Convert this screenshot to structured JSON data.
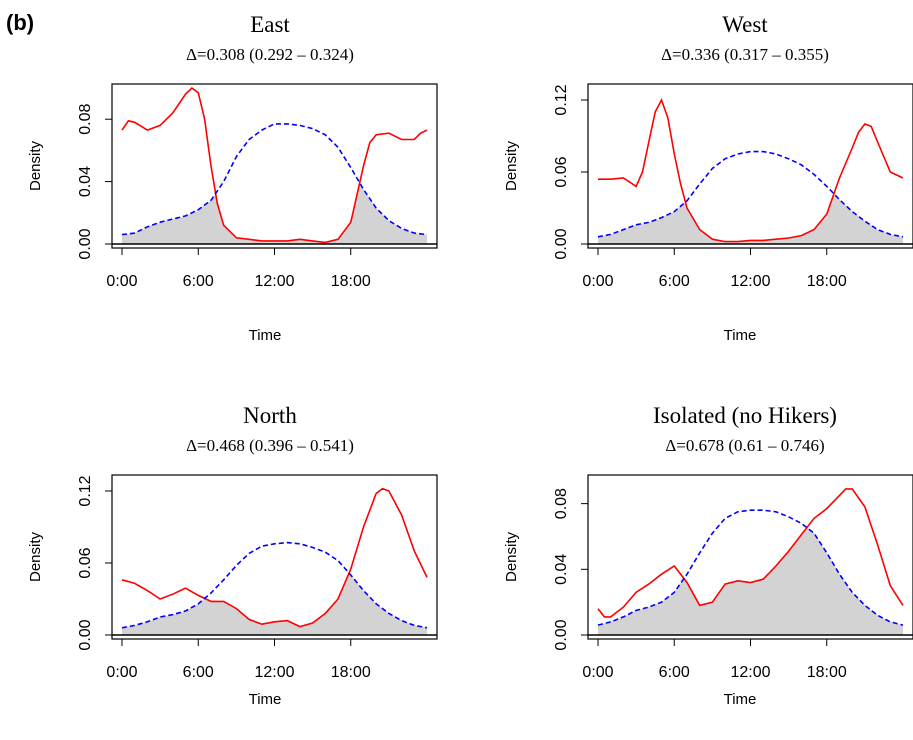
{
  "figure_label": "(b)",
  "chart_data": [
    {
      "type": "line",
      "title": "East",
      "subtitle": "Δ=0.308 (0.292 – 0.324)",
      "xlabel": "Time",
      "ylabel": "Density",
      "xlim": [
        0,
        24
      ],
      "ylim": [
        0,
        0.1
      ],
      "xticks": [
        "0:00",
        "6:00",
        "12:00",
        "18:00"
      ],
      "yticks": [
        "0.00",
        "0.04",
        "0.08"
      ],
      "series": [
        {
          "color": "#ff0000",
          "dash": "solid",
          "x": [
            0,
            0.5,
            1,
            2,
            3,
            4,
            5,
            5.5,
            6,
            6.5,
            7,
            7.5,
            8,
            9,
            10,
            11,
            12,
            13,
            14,
            15,
            16,
            17,
            18,
            19,
            19.5,
            20,
            21,
            22,
            23,
            23.5,
            24
          ],
          "y": [
            0.073,
            0.079,
            0.078,
            0.073,
            0.076,
            0.084,
            0.096,
            0.1,
            0.097,
            0.08,
            0.05,
            0.026,
            0.012,
            0.004,
            0.003,
            0.002,
            0.002,
            0.002,
            0.003,
            0.002,
            0.001,
            0.003,
            0.014,
            0.05,
            0.065,
            0.07,
            0.071,
            0.067,
            0.067,
            0.071,
            0.073
          ]
        },
        {
          "color": "#0000ff",
          "dash": "dashed",
          "x": [
            0,
            1,
            2,
            3,
            4,
            5,
            6,
            7,
            8,
            9,
            10,
            11,
            12,
            13,
            14,
            15,
            16,
            17,
            18,
            19,
            20,
            21,
            22,
            23,
            24
          ],
          "y": [
            0.006,
            0.007,
            0.011,
            0.014,
            0.016,
            0.018,
            0.022,
            0.028,
            0.04,
            0.056,
            0.067,
            0.073,
            0.077,
            0.077,
            0.076,
            0.074,
            0.07,
            0.062,
            0.049,
            0.035,
            0.023,
            0.015,
            0.01,
            0.007,
            0.006
          ]
        }
      ]
    },
    {
      "type": "line",
      "title": "West",
      "subtitle": "Δ=0.336 (0.317 – 0.355)",
      "xlabel": "Time",
      "ylabel": "Density",
      "xlim": [
        0,
        24
      ],
      "ylim": [
        0,
        0.13
      ],
      "xticks": [
        "0:00",
        "6:00",
        "12:00",
        "18:00"
      ],
      "yticks": [
        "0.00",
        "0.06",
        "0.12"
      ],
      "series": [
        {
          "color": "#ff0000",
          "dash": "solid",
          "x": [
            0,
            1,
            2,
            3,
            3.5,
            4,
            4.5,
            5,
            5.5,
            6,
            6.5,
            7,
            8,
            9,
            10,
            11,
            12,
            13,
            14,
            15,
            16,
            17,
            18,
            19,
            20,
            20.5,
            21,
            21.5,
            22,
            23,
            24
          ],
          "y": [
            0.054,
            0.054,
            0.055,
            0.048,
            0.06,
            0.085,
            0.11,
            0.12,
            0.105,
            0.075,
            0.05,
            0.03,
            0.012,
            0.004,
            0.002,
            0.002,
            0.003,
            0.003,
            0.004,
            0.005,
            0.007,
            0.012,
            0.025,
            0.055,
            0.08,
            0.093,
            0.1,
            0.098,
            0.085,
            0.06,
            0.055
          ]
        },
        {
          "color": "#0000ff",
          "dash": "dashed",
          "x": [
            0,
            1,
            2,
            3,
            4,
            5,
            6,
            7,
            8,
            9,
            10,
            11,
            12,
            13,
            14,
            15,
            16,
            17,
            18,
            19,
            20,
            21,
            22,
            23,
            24
          ],
          "y": [
            0.006,
            0.008,
            0.012,
            0.016,
            0.018,
            0.022,
            0.027,
            0.036,
            0.05,
            0.063,
            0.071,
            0.075,
            0.077,
            0.077,
            0.075,
            0.071,
            0.066,
            0.058,
            0.048,
            0.037,
            0.027,
            0.019,
            0.012,
            0.008,
            0.006
          ]
        }
      ]
    },
    {
      "type": "line",
      "title": "North",
      "subtitle": "Δ=0.468 (0.396 – 0.541)",
      "xlabel": "Time",
      "ylabel": "Density",
      "xlim": [
        0,
        24
      ],
      "ylim": [
        0,
        0.13
      ],
      "xticks": [
        "0:00",
        "6:00",
        "12:00",
        "18:00"
      ],
      "yticks": [
        "0.00",
        "0.06",
        "0.12"
      ],
      "series": [
        {
          "color": "#ff0000",
          "dash": "solid",
          "x": [
            0,
            1,
            2,
            3,
            4,
            5,
            6,
            7,
            8,
            9,
            10,
            11,
            12,
            13,
            14,
            15,
            16,
            17,
            18,
            19,
            20,
            20.5,
            21,
            22,
            23,
            24
          ],
          "y": [
            0.046,
            0.043,
            0.037,
            0.03,
            0.034,
            0.039,
            0.033,
            0.028,
            0.028,
            0.022,
            0.013,
            0.009,
            0.011,
            0.012,
            0.007,
            0.01,
            0.018,
            0.03,
            0.055,
            0.09,
            0.118,
            0.122,
            0.12,
            0.1,
            0.07,
            0.048
          ]
        },
        {
          "color": "#0000ff",
          "dash": "dashed",
          "x": [
            0,
            1,
            2,
            3,
            4,
            5,
            6,
            7,
            8,
            9,
            10,
            11,
            12,
            13,
            14,
            15,
            16,
            17,
            18,
            19,
            20,
            21,
            22,
            23,
            24
          ],
          "y": [
            0.006,
            0.008,
            0.011,
            0.015,
            0.017,
            0.02,
            0.026,
            0.035,
            0.046,
            0.058,
            0.068,
            0.074,
            0.076,
            0.077,
            0.076,
            0.073,
            0.069,
            0.062,
            0.05,
            0.037,
            0.026,
            0.018,
            0.012,
            0.008,
            0.006
          ]
        }
      ]
    },
    {
      "type": "line",
      "title": "Isolated (no Hikers)",
      "subtitle": "Δ=0.678 (0.61 – 0.746)",
      "xlabel": "Time",
      "ylabel": "Density",
      "xlim": [
        0,
        24
      ],
      "ylim": [
        0,
        0.095
      ],
      "xticks": [
        "0:00",
        "6:00",
        "12:00",
        "18:00"
      ],
      "yticks": [
        "0.00",
        "0.04",
        "0.08"
      ],
      "series": [
        {
          "color": "#ff0000",
          "dash": "solid",
          "x": [
            0,
            0.5,
            1,
            2,
            3,
            4,
            5,
            6,
            7,
            8,
            9,
            10,
            11,
            12,
            13,
            14,
            15,
            16,
            17,
            18,
            19,
            19.5,
            20,
            21,
            22,
            23,
            24
          ],
          "y": [
            0.016,
            0.011,
            0.011,
            0.017,
            0.026,
            0.031,
            0.037,
            0.042,
            0.032,
            0.018,
            0.02,
            0.031,
            0.033,
            0.032,
            0.034,
            0.042,
            0.051,
            0.061,
            0.071,
            0.077,
            0.085,
            0.089,
            0.089,
            0.078,
            0.055,
            0.03,
            0.018
          ]
        },
        {
          "color": "#0000ff",
          "dash": "dashed",
          "x": [
            0,
            1,
            2,
            3,
            4,
            5,
            6,
            7,
            8,
            9,
            10,
            11,
            12,
            13,
            14,
            15,
            16,
            17,
            18,
            19,
            20,
            21,
            22,
            23,
            24
          ],
          "y": [
            0.006,
            0.008,
            0.011,
            0.015,
            0.017,
            0.02,
            0.026,
            0.037,
            0.05,
            0.062,
            0.071,
            0.075,
            0.076,
            0.076,
            0.075,
            0.072,
            0.068,
            0.062,
            0.05,
            0.037,
            0.026,
            0.018,
            0.012,
            0.008,
            0.006
          ]
        }
      ]
    }
  ]
}
